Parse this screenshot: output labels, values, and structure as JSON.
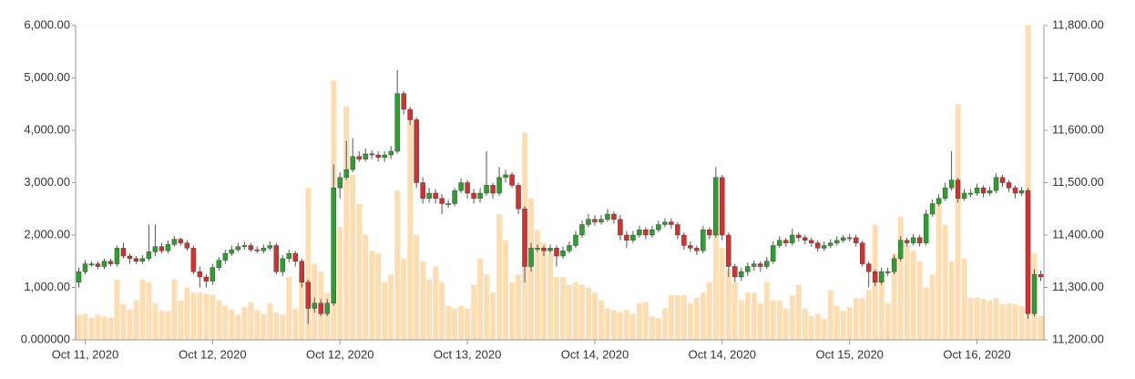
{
  "chart_data": {
    "type": "candlestick",
    "categories": [
      null,
      "Oct 11, 2020",
      null,
      null,
      null,
      null,
      null,
      null,
      null,
      null,
      null,
      null,
      null,
      null,
      null,
      null,
      null,
      null,
      null,
      null,
      null,
      "Oct 12, 2020",
      null,
      null,
      null,
      null,
      null,
      null,
      null,
      null,
      null,
      null,
      null,
      null,
      null,
      null,
      null,
      null,
      null,
      null,
      null,
      "Oct 12, 2020",
      null,
      null,
      null,
      null,
      null,
      null,
      null,
      null,
      null,
      null,
      null,
      null,
      null,
      null,
      null,
      null,
      null,
      null,
      null,
      "Oct 13, 2020",
      null,
      null,
      null,
      null,
      null,
      null,
      null,
      null,
      null,
      null,
      null,
      null,
      null,
      null,
      null,
      null,
      null,
      null,
      null,
      "Oct 14, 2020",
      null,
      null,
      null,
      null,
      null,
      null,
      null,
      null,
      null,
      null,
      null,
      null,
      null,
      null,
      null,
      null,
      null,
      null,
      null,
      "Oct 14, 2020",
      null,
      null,
      null,
      null,
      null,
      null,
      null,
      null,
      null,
      null,
      null,
      null,
      null,
      null,
      null,
      null,
      null,
      null,
      null,
      "Oct 15, 2020",
      null,
      null,
      null,
      null,
      null,
      null,
      null,
      null,
      null,
      null,
      null,
      null,
      null,
      null,
      null,
      null,
      null,
      null,
      null,
      "Oct 16, 2020",
      null,
      null,
      null,
      null,
      null,
      null,
      null,
      null,
      null,
      null
    ],
    "open": [
      11310,
      11330,
      11345,
      11345,
      11340,
      11350,
      11345,
      11375,
      11360,
      11355,
      11350,
      11355,
      11368,
      11378,
      11370,
      11382,
      11392,
      11385,
      11375,
      11330,
      11320,
      11312,
      11338,
      11352,
      11365,
      11372,
      11378,
      11380,
      11372,
      11370,
      11375,
      11380,
      11330,
      11355,
      11365,
      11350,
      11310,
      11260,
      11270,
      11250,
      11270,
      11490,
      11510,
      11525,
      11550,
      11545,
      11555,
      11553,
      11548,
      11553,
      11560,
      11670,
      11640,
      11620,
      11500,
      11470,
      11480,
      11470,
      11460,
      11460,
      11485,
      11500,
      11480,
      11470,
      11480,
      11495,
      11480,
      11510,
      11515,
      11495,
      11450,
      11340,
      11375,
      11375,
      11370,
      11375,
      11360,
      11370,
      11380,
      11400,
      11420,
      11430,
      11425,
      11430,
      11440,
      11430,
      11400,
      11390,
      11400,
      11410,
      11400,
      11410,
      11420,
      11425,
      11420,
      11400,
      11380,
      11375,
      11370,
      11410,
      11400,
      11510,
      11400,
      11340,
      11320,
      11330,
      11340,
      11345,
      11340,
      11350,
      11380,
      11390,
      11385,
      11400,
      11395,
      11390,
      11385,
      11375,
      11380,
      11385,
      11390,
      11395,
      11395,
      11385,
      11345,
      11330,
      11310,
      11330,
      11330,
      11355,
      11390,
      11385,
      11395,
      11385,
      11440,
      11460,
      11470,
      11490,
      11505,
      11470,
      11480,
      11480,
      11490,
      11480,
      11485,
      11510,
      11500,
      11490,
      11480,
      11485,
      11250,
      11325
    ],
    "high": [
      11338,
      11352,
      11350,
      11350,
      11355,
      11355,
      11380,
      11385,
      11365,
      11360,
      11362,
      11420,
      11420,
      11385,
      11390,
      11398,
      11395,
      11390,
      11380,
      11340,
      11325,
      11345,
      11358,
      11372,
      11380,
      11385,
      11388,
      11385,
      11378,
      11382,
      11388,
      11385,
      11362,
      11372,
      11370,
      11355,
      11315,
      11280,
      11278,
      11278,
      11535,
      11520,
      11580,
      11585,
      11560,
      11565,
      11562,
      11560,
      11560,
      11570,
      11715,
      11675,
      11645,
      11625,
      11510,
      11490,
      11488,
      11478,
      11468,
      11490,
      11508,
      11505,
      11488,
      11490,
      11560,
      11500,
      11530,
      11525,
      11520,
      11500,
      11455,
      11385,
      11382,
      11380,
      11382,
      11380,
      11378,
      11388,
      11408,
      11428,
      11440,
      11438,
      11438,
      11450,
      11445,
      11438,
      11408,
      11408,
      11418,
      11415,
      11418,
      11428,
      11432,
      11432,
      11425,
      11405,
      11388,
      11380,
      11418,
      11415,
      11530,
      11515,
      11405,
      11345,
      11338,
      11348,
      11352,
      11350,
      11358,
      11388,
      11398,
      11395,
      11412,
      11405,
      11400,
      11395,
      11390,
      11388,
      11392,
      11398,
      11400,
      11402,
      11400,
      11390,
      11350,
      11335,
      11338,
      11338,
      11362,
      11398,
      11395,
      11402,
      11400,
      11448,
      11468,
      11478,
      11500,
      11560,
      11510,
      11488,
      11488,
      11498,
      11495,
      11492,
      11518,
      11515,
      11505,
      11495,
      11492,
      11490,
      11335,
      11332
    ],
    "low": [
      11300,
      11325,
      11340,
      11335,
      11335,
      11340,
      11340,
      11355,
      11345,
      11345,
      11345,
      11350,
      11360,
      11365,
      11365,
      11378,
      11380,
      11370,
      11325,
      11300,
      11300,
      11305,
      11332,
      11345,
      11360,
      11368,
      11372,
      11368,
      11365,
      11365,
      11370,
      11325,
      11322,
      11348,
      11340,
      11300,
      11230,
      11252,
      11245,
      11245,
      11265,
      11470,
      11505,
      11520,
      11540,
      11540,
      11545,
      11540,
      11540,
      11545,
      11555,
      11630,
      11610,
      11490,
      11460,
      11462,
      11460,
      11440,
      11452,
      11455,
      11480,
      11470,
      11460,
      11462,
      11475,
      11470,
      11475,
      11500,
      11490,
      11440,
      11310,
      11330,
      11368,
      11360,
      11365,
      11340,
      11355,
      11365,
      11375,
      11395,
      11415,
      11418,
      11420,
      11425,
      11422,
      11390,
      11375,
      11385,
      11395,
      11392,
      11395,
      11405,
      11415,
      11412,
      11392,
      11372,
      11368,
      11362,
      11365,
      11392,
      11395,
      11390,
      11320,
      11310,
      11312,
      11322,
      11332,
      11330,
      11335,
      11345,
      11375,
      11378,
      11380,
      11388,
      11382,
      11378,
      11368,
      11370,
      11375,
      11380,
      11385,
      11388,
      11378,
      11340,
      11300,
      11302,
      11305,
      11322,
      11325,
      11350,
      11378,
      11380,
      11378,
      11380,
      11435,
      11455,
      11465,
      11485,
      11462,
      11465,
      11472,
      11475,
      11472,
      11475,
      11480,
      11492,
      11482,
      11470,
      11475,
      11240,
      11245,
      11312
    ],
    "close": [
      11330,
      11345,
      11345,
      11340,
      11350,
      11345,
      11375,
      11360,
      11355,
      11350,
      11355,
      11368,
      11378,
      11370,
      11382,
      11392,
      11385,
      11375,
      11330,
      11320,
      11312,
      11338,
      11352,
      11365,
      11372,
      11378,
      11380,
      11372,
      11370,
      11375,
      11380,
      11330,
      11355,
      11365,
      11350,
      11310,
      11260,
      11270,
      11250,
      11270,
      11490,
      11510,
      11525,
      11550,
      11545,
      11555,
      11553,
      11548,
      11553,
      11560,
      11670,
      11640,
      11620,
      11500,
      11470,
      11480,
      11470,
      11460,
      11460,
      11485,
      11500,
      11480,
      11470,
      11480,
      11495,
      11480,
      11510,
      11515,
      11495,
      11450,
      11340,
      11375,
      11375,
      11370,
      11375,
      11360,
      11370,
      11380,
      11400,
      11420,
      11430,
      11425,
      11430,
      11440,
      11430,
      11400,
      11390,
      11400,
      11410,
      11400,
      11410,
      11420,
      11425,
      11420,
      11400,
      11380,
      11375,
      11370,
      11410,
      11400,
      11510,
      11400,
      11340,
      11320,
      11330,
      11340,
      11345,
      11340,
      11350,
      11380,
      11390,
      11385,
      11400,
      11395,
      11390,
      11385,
      11375,
      11380,
      11385,
      11390,
      11395,
      11395,
      11385,
      11345,
      11330,
      11310,
      11330,
      11330,
      11355,
      11390,
      11385,
      11395,
      11385,
      11440,
      11460,
      11470,
      11490,
      11505,
      11470,
      11480,
      11480,
      11490,
      11480,
      11485,
      11510,
      11500,
      11490,
      11480,
      11485,
      11250,
      11325,
      11320
    ],
    "volume": [
      480,
      500,
      420,
      480,
      450,
      430,
      1150,
      680,
      580,
      750,
      1150,
      1100,
      700,
      560,
      550,
      1150,
      750,
      1000,
      900,
      900,
      880,
      860,
      750,
      650,
      580,
      480,
      620,
      720,
      570,
      500,
      700,
      520,
      480,
      1200,
      600,
      1250,
      2900,
      1450,
      1300,
      900,
      4950,
      2150,
      4450,
      3150,
      2600,
      2000,
      1700,
      1650,
      1100,
      1250,
      2850,
      1550,
      4300,
      2000,
      1500,
      1150,
      1400,
      1100,
      650,
      600,
      650,
      600,
      1050,
      1550,
      1250,
      900,
      2400,
      1900,
      1100,
      1250,
      3950,
      2700,
      2100,
      1850,
      1650,
      1200,
      1200,
      1050,
      1100,
      1050,
      1000,
      900,
      750,
      600,
      570,
      530,
      570,
      500,
      700,
      720,
      450,
      420,
      600,
      850,
      850,
      850,
      700,
      800,
      900,
      1100,
      2700,
      1750,
      1350,
      1100,
      750,
      900,
      900,
      700,
      1100,
      750,
      750,
      600,
      850,
      1050,
      600,
      450,
      500,
      400,
      950,
      650,
      550,
      620,
      800,
      800,
      950,
      2200,
      1150,
      700,
      1650,
      2350,
      1800,
      1700,
      1500,
      1000,
      1250,
      2700,
      2200,
      1500,
      4500,
      1550,
      800,
      800,
      780,
      750,
      800,
      680,
      700,
      680,
      640,
      6000,
      1650,
      450
    ],
    "ylim": [
      0,
      6000
    ],
    "yticks": [
      {
        "value": 0,
        "label": "0.000000"
      },
      {
        "value": 1000,
        "label": "1,000.00"
      },
      {
        "value": 2000,
        "label": "2,000.00"
      },
      {
        "value": 3000,
        "label": "3,000.00"
      },
      {
        "value": 4000,
        "label": "4,000.00"
      },
      {
        "value": 5000,
        "label": "5,000.00"
      },
      {
        "value": 6000,
        "label": "6,000.00"
      }
    ],
    "y2lim": [
      11200,
      11800
    ],
    "y2ticks": [
      {
        "value": 11200,
        "label": "11,200.00"
      },
      {
        "value": 11300,
        "label": "11,300.00"
      },
      {
        "value": 11400,
        "label": "11,400.00"
      },
      {
        "value": 11500,
        "label": "11,500.00"
      },
      {
        "value": 11600,
        "label": "11,600.00"
      },
      {
        "value": 11700,
        "label": "11,700.00"
      },
      {
        "value": 11800,
        "label": "11,800.00"
      }
    ],
    "colors": {
      "up": "#2ca02c",
      "down": "#d62f2f",
      "volume": "#ffd9a8",
      "wick": "#555555"
    }
  }
}
